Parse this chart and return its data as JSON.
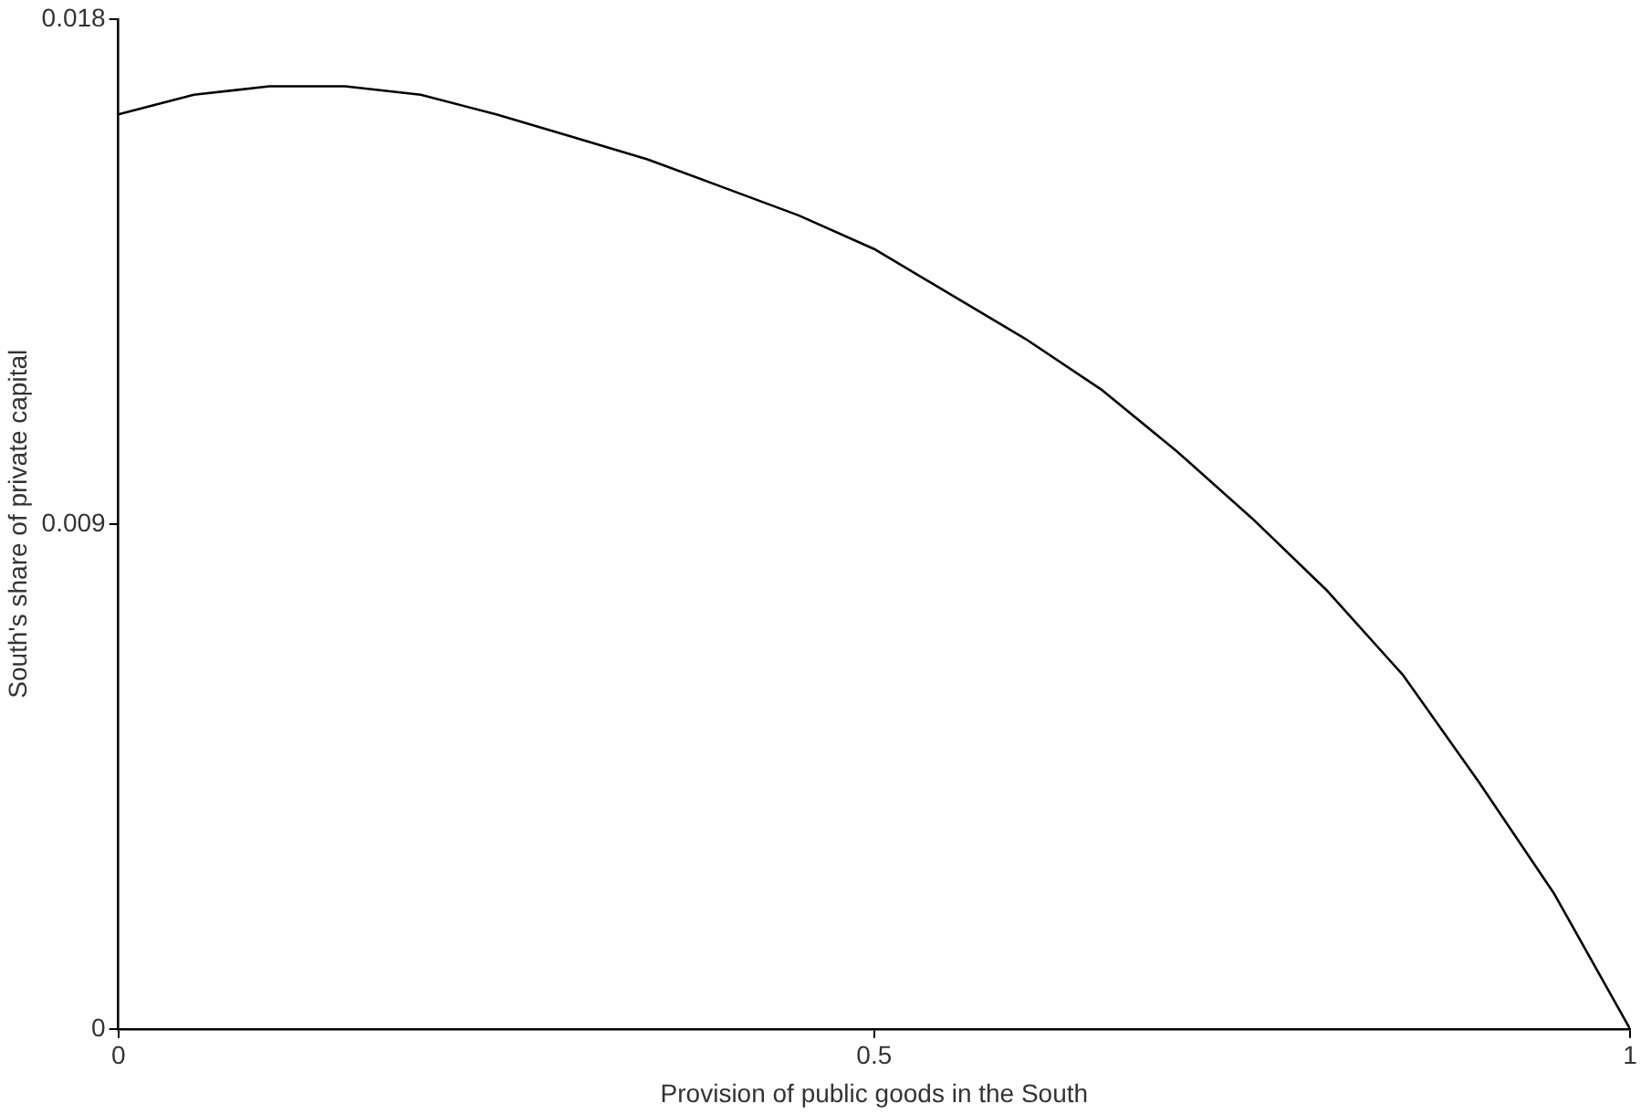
{
  "chart_data": {
    "type": "line",
    "xlabel": "Provision of public goods in the South",
    "ylabel": "South's share of private capital",
    "x": [
      0,
      0.05,
      0.1,
      0.15,
      0.2,
      0.25,
      0.3,
      0.35,
      0.4,
      0.45,
      0.5,
      0.55,
      0.6,
      0.65,
      0.7,
      0.75,
      0.8,
      0.85,
      0.9,
      0.95,
      1
    ],
    "series": [
      {
        "color": "#000000",
        "values": [
          0.0163,
          0.01665,
          0.0168,
          0.0168,
          0.01665,
          0.0163,
          0.0159,
          0.0155,
          0.015,
          0.0145,
          0.0139,
          0.0131,
          0.0123,
          0.0114,
          0.0103,
          0.0091,
          0.0078,
          0.0063,
          0.0044,
          0.0024,
          0
        ]
      }
    ],
    "xlim": [
      0,
      1
    ],
    "xticks": [
      0,
      0.5,
      1
    ],
    "ylim": [
      0,
      0.018
    ],
    "yticks": [
      0,
      0.009,
      0.018
    ],
    "grid": false,
    "legend": false,
    "marker": "none",
    "line_style": "solid"
  }
}
